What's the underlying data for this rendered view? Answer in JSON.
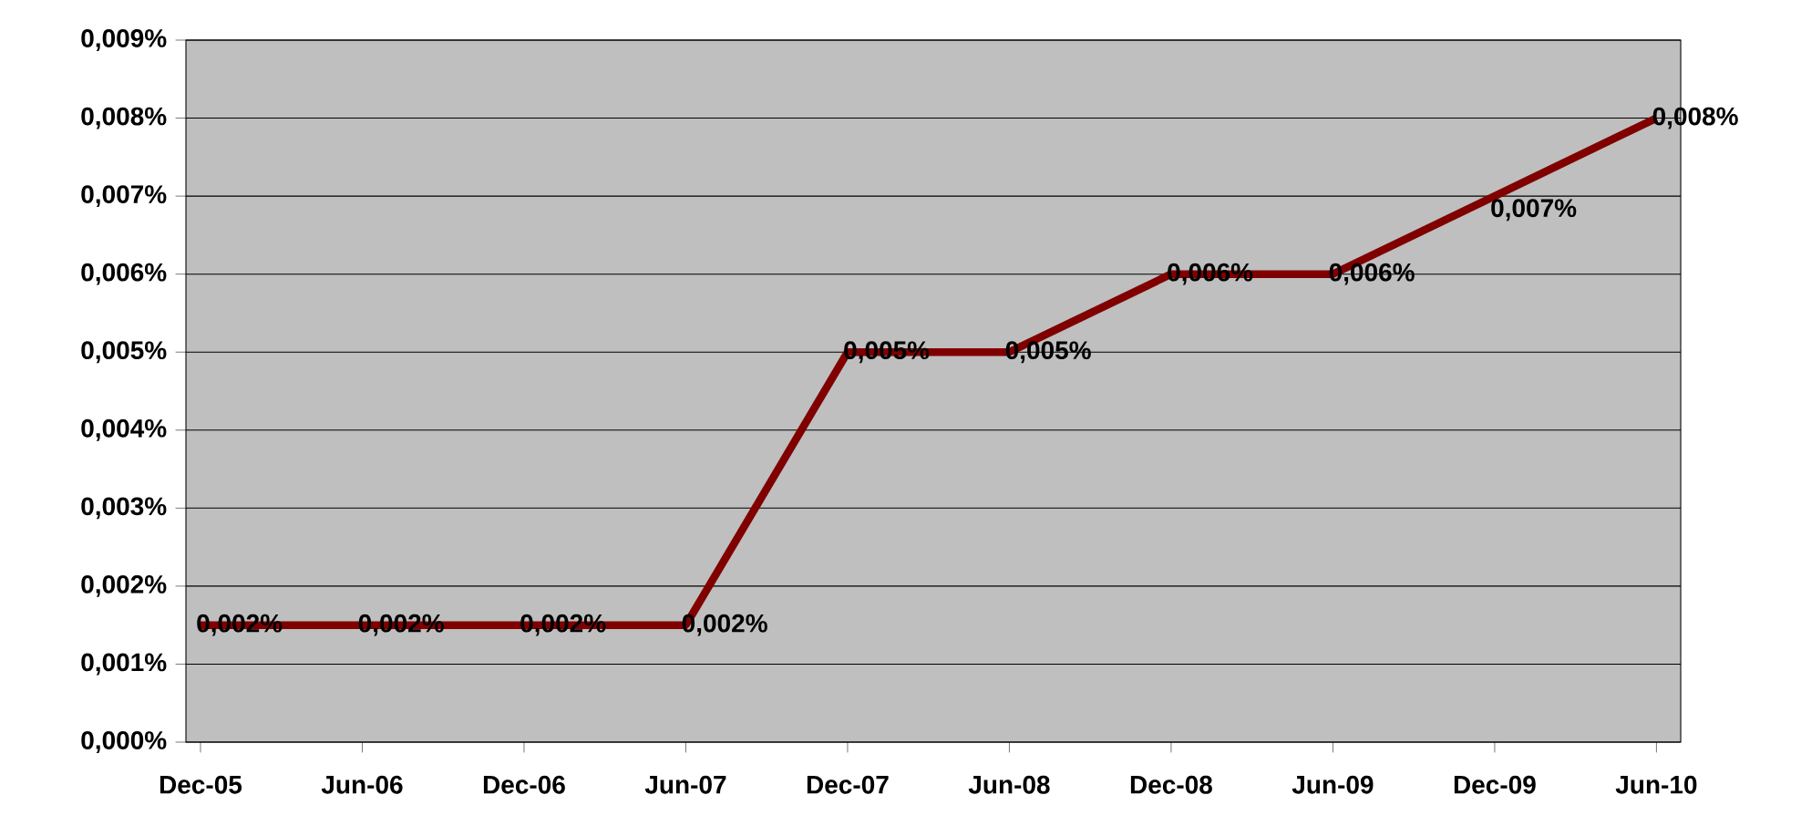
{
  "chart_data": {
    "type": "line",
    "categories": [
      "Dec-05",
      "Jun-06",
      "Dec-06",
      "Jun-07",
      "Dec-07",
      "Jun-08",
      "Dec-08",
      "Jun-09",
      "Dec-09",
      "Jun-10"
    ],
    "values": [
      0.0015,
      0.0015,
      0.0015,
      0.0015,
      0.005,
      0.005,
      0.006,
      0.006,
      0.007,
      0.008
    ],
    "value_labels": [
      "0,002%",
      "0,002%",
      "0,002%",
      "0,002%",
      "0,005%",
      "0,005%",
      "0,006%",
      "0,006%",
      "0,007%",
      "0,008%"
    ],
    "color": "#800000",
    "ylim": [
      0,
      0.009
    ],
    "yticks": [
      {
        "value": 0,
        "label": "0,000%"
      },
      {
        "value": 0.001,
        "label": "0,001%"
      },
      {
        "value": 0.002,
        "label": "0,002%"
      },
      {
        "value": 0.003,
        "label": "0,003%"
      },
      {
        "value": 0.004,
        "label": "0,004%"
      },
      {
        "value": 0.005,
        "label": "0,005%"
      },
      {
        "value": 0.006,
        "label": "0,006%"
      },
      {
        "value": 0.007,
        "label": "0,007%"
      },
      {
        "value": 0.008,
        "label": "0,008%"
      },
      {
        "value": 0.009,
        "label": "0,009%"
      }
    ],
    "grid": "y",
    "marker": "none",
    "line_style": "solid"
  }
}
